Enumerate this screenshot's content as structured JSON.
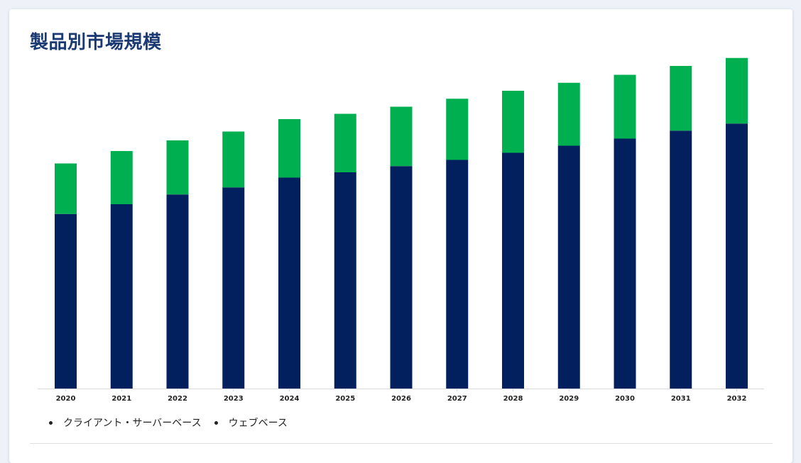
{
  "title": "製品別市場規模",
  "chart_data": {
    "type": "bar",
    "stacked": true,
    "categories": [
      "2020",
      "2021",
      "2022",
      "2023",
      "2024",
      "2025",
      "2026",
      "2027",
      "2028",
      "2029",
      "2030",
      "2031",
      "2032"
    ],
    "series": [
      {
        "name": "クライアント・サーバーベース",
        "color": "#03205e",
        "values": [
          197,
          208,
          219,
          227,
          238,
          244,
          251,
          258,
          266,
          274,
          282,
          291,
          299
        ]
      },
      {
        "name": "ウェブベース",
        "color": "#00b050",
        "values": [
          57,
          60,
          61,
          63,
          66,
          66,
          67,
          69,
          70,
          71,
          72,
          73,
          74
        ]
      }
    ],
    "ylim": [
      0,
      400
    ],
    "grid": false,
    "legend_position": "bottom-left"
  }
}
